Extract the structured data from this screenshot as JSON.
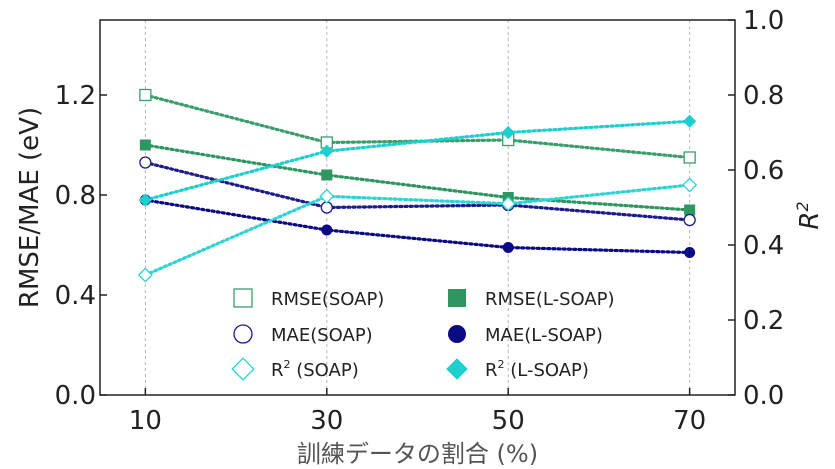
{
  "chart_data": {
    "type": "line",
    "xlabel": "訓練データの割合 (%)",
    "ylabel_left": "RMSE/MAE (eV)",
    "ylabel_right": "R",
    "ylabel_right_sup": "2",
    "x": [
      10,
      30,
      50,
      70
    ],
    "x_ticks": [
      "10",
      "30",
      "50",
      "70"
    ],
    "xlim": [
      5,
      75
    ],
    "ylim_left": [
      0.0,
      1.5
    ],
    "y_ticks_left": [
      "0.0",
      "0.4",
      "0.8",
      "1.2"
    ],
    "ylim_right": [
      0.0,
      1.0
    ],
    "y_ticks_right": [
      "0.0",
      "0.2",
      "0.4",
      "0.6",
      "0.8",
      "1.0"
    ],
    "grid": "vertical dashed",
    "legend_position": "bottom-center",
    "series": [
      {
        "name": "RMSE(SOAP)",
        "axis": "left",
        "values": [
          1.2,
          1.01,
          1.02,
          0.95
        ],
        "color": "#3a9e6a",
        "marker": "square-open"
      },
      {
        "name": "RMSE(L-SOAP)",
        "axis": "left",
        "values": [
          1.0,
          0.88,
          0.79,
          0.74
        ],
        "color": "#2e9660",
        "marker": "square-filled"
      },
      {
        "name": "MAE(SOAP)",
        "axis": "left",
        "values": [
          0.93,
          0.75,
          0.76,
          0.7
        ],
        "color": "#1c1c8c",
        "marker": "circle-open"
      },
      {
        "name": "MAE(L-SOAP)",
        "axis": "left",
        "values": [
          0.78,
          0.66,
          0.59,
          0.57
        ],
        "color": "#0a0a85",
        "marker": "circle-filled"
      },
      {
        "name": "R² (SOAP)",
        "legend_base": "R",
        "legend_rest": "(SOAP)",
        "axis": "right",
        "values": [
          0.32,
          0.53,
          0.51,
          0.56
        ],
        "color": "#2ed3d3",
        "marker": "diamond-open"
      },
      {
        "name": "R² (L-SOAP)",
        "legend_base": "R",
        "legend_rest": "(L-SOAP)",
        "axis": "right",
        "values": [
          0.52,
          0.65,
          0.7,
          0.73
        ],
        "color": "#1dcfcf",
        "marker": "diamond-filled"
      }
    ]
  }
}
